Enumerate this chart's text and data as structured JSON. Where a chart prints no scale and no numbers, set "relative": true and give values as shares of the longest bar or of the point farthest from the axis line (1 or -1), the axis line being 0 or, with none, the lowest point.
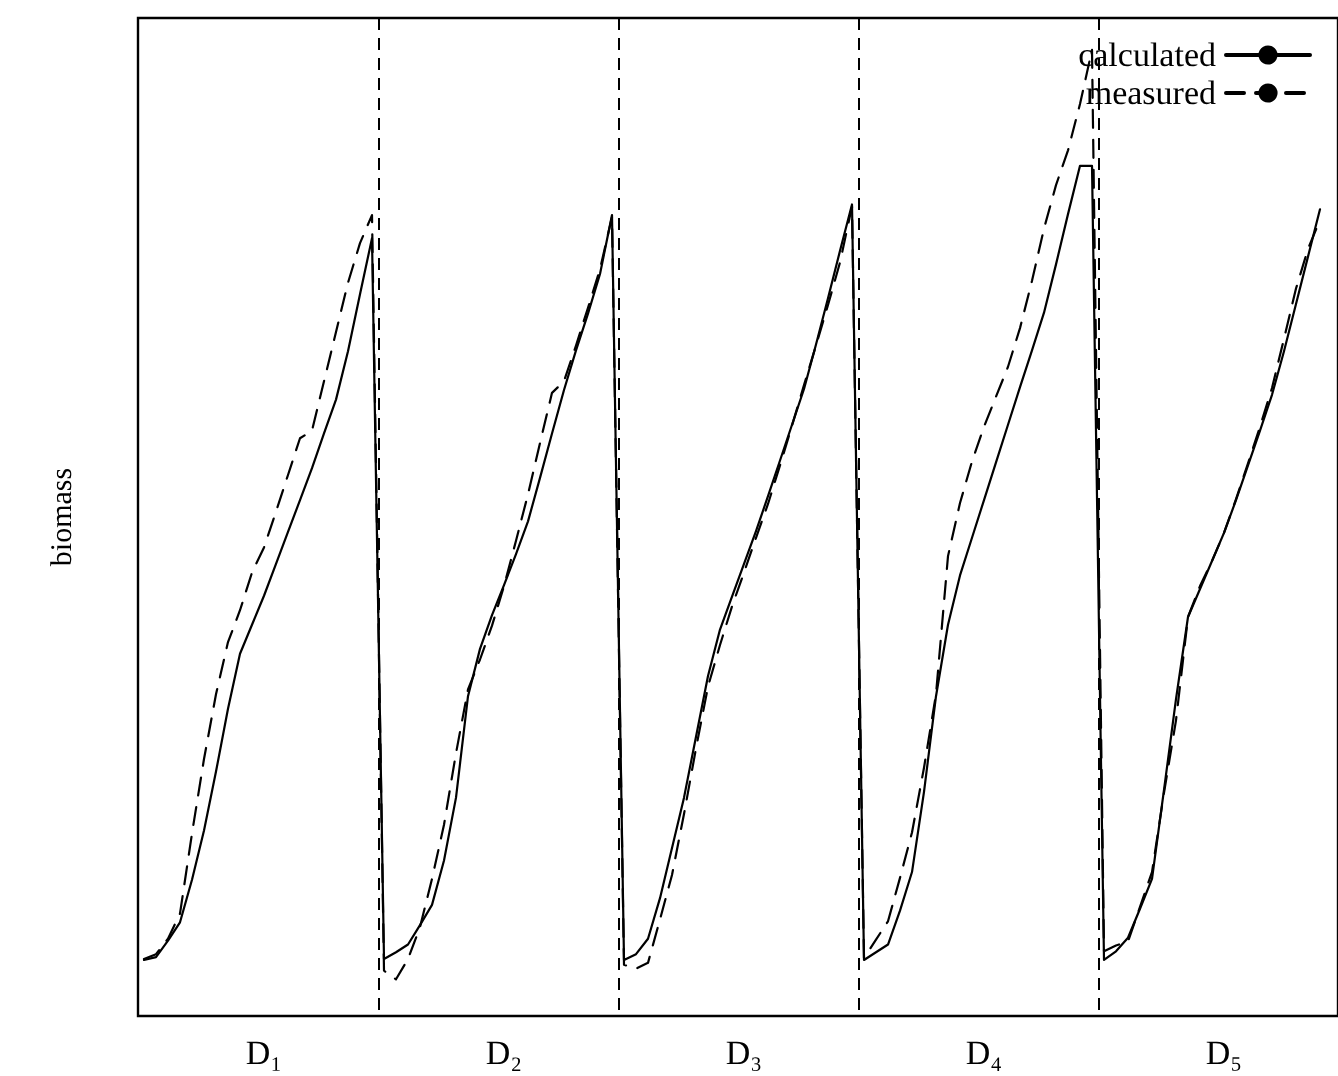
{
  "chart_data": {
    "type": "line",
    "relative": true,
    "ylabel": "biomass",
    "categories": [
      null,
      null,
      null,
      null,
      null,
      null,
      null,
      null,
      null,
      null,
      "D₁",
      null,
      null,
      null,
      null,
      null,
      null,
      null,
      null,
      null,
      null,
      null,
      null,
      null,
      null,
      null,
      null,
      null,
      null,
      null,
      "D₂",
      null,
      null,
      null,
      null,
      null,
      null,
      null,
      null,
      null,
      null,
      null,
      null,
      null,
      null,
      null,
      null,
      null,
      null,
      null,
      "D₃",
      null,
      null,
      null,
      null,
      null,
      null,
      null,
      null,
      null,
      null,
      null,
      null,
      null,
      null,
      null,
      null,
      null,
      null,
      null,
      "D₄",
      null,
      null,
      null,
      null,
      null,
      null,
      null,
      null,
      null,
      null,
      null,
      null,
      null,
      null,
      null,
      null,
      null,
      null,
      null,
      "D₅",
      null,
      null,
      null,
      null,
      null,
      null,
      null,
      null,
      null
    ],
    "legend": "top right",
    "marker": "none",
    "grid": "x",
    "series": [
      {
        "name": "calculated",
        "color": "#000000",
        "line_style": "solid",
        "values": [
          0.058,
          0.061,
          0.078,
          0.097,
          0.141,
          0.192,
          0.253,
          0.318,
          0.375,
          0.405,
          0.435,
          0.468,
          0.501,
          0.534,
          0.567,
          0.603,
          0.638,
          0.688,
          0.747,
          0.805,
          0.059,
          0.066,
          0.074,
          0.094,
          0.115,
          0.161,
          0.226,
          0.331,
          0.38,
          0.415,
          0.446,
          0.478,
          0.512,
          0.557,
          0.603,
          0.648,
          0.689,
          0.727,
          0.768,
          0.829,
          0.058,
          0.064,
          0.08,
          0.122,
          0.174,
          0.226,
          0.289,
          0.352,
          0.4,
          0.434,
          0.468,
          0.502,
          0.538,
          0.575,
          0.612,
          0.649,
          0.695,
          0.743,
          0.792,
          0.84,
          0.058,
          0.066,
          0.074,
          0.109,
          0.149,
          0.232,
          0.331,
          0.405,
          0.456,
          0.495,
          0.534,
          0.573,
          0.612,
          0.651,
          0.689,
          0.728,
          0.778,
          0.83,
          0.88,
          0.88,
          0.058,
          0.067,
          0.081,
          0.111,
          0.142,
          0.234,
          0.328,
          0.413,
          0.442,
          0.471,
          0.5,
          0.534,
          0.57,
          0.606,
          0.643,
          0.688,
          0.737,
          0.786,
          0.835,
          null
        ]
      },
      {
        "name": "measured",
        "color": "#000000",
        "line_style": "dashed",
        "values": [
          0.059,
          0.064,
          0.08,
          0.106,
          0.189,
          0.266,
          0.333,
          0.387,
          0.42,
          0.459,
          0.485,
          0.522,
          0.56,
          0.598,
          0.606,
          0.657,
          0.708,
          0.759,
          0.8,
          0.829,
          0.047,
          0.038,
          0.059,
          0.092,
          0.142,
          0.198,
          0.272,
          0.338,
          0.369,
          0.404,
          0.445,
          0.492,
          0.54,
          0.593,
          0.645,
          0.657,
          0.694,
          0.733,
          0.773,
          0.827,
          0.053,
          0.049,
          0.055,
          0.1,
          0.146,
          0.209,
          0.277,
          0.341,
          0.384,
          0.424,
          0.459,
          0.495,
          0.53,
          0.57,
          0.611,
          0.653,
          0.694,
          0.736,
          0.78,
          0.838,
          0.06,
          0.079,
          0.098,
          0.143,
          0.19,
          0.257,
          0.333,
          0.476,
          0.531,
          0.574,
          0.61,
          0.641,
          0.672,
          0.712,
          0.761,
          0.815,
          0.86,
          0.896,
          0.944,
          1.0,
          0.067,
          0.073,
          0.077,
          0.113,
          0.149,
          0.231,
          0.306,
          0.413,
          0.445,
          0.471,
          0.5,
          0.535,
          0.572,
          0.61,
          0.65,
          0.701,
          0.753,
          0.794,
          0.824,
          null
        ]
      }
    ]
  }
}
